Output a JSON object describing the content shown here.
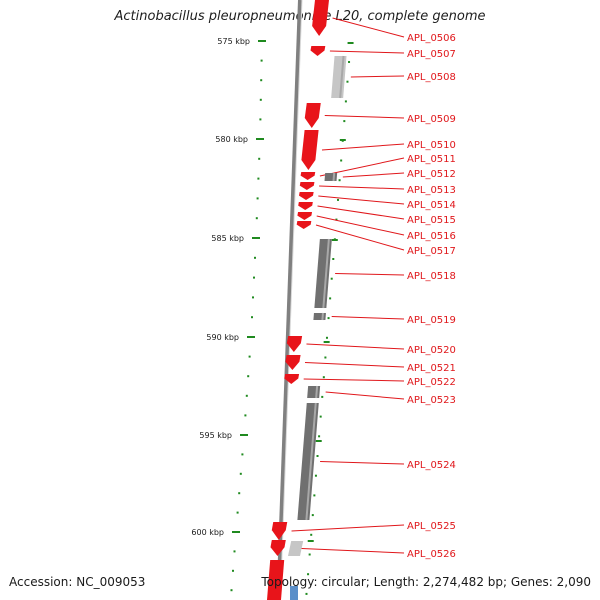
{
  "title": "Actinobacillus pleuropneumoniae L20, complete genome",
  "accession": "Accession: NC_009053",
  "summary": "Topology: circular; Length: 2,274,482 bp; Genes: 2,090",
  "colors": {
    "forward": "#e8141a",
    "reverse": "#707070",
    "reverse_light": "#c6c6c6",
    "tick": "#1f8a1f",
    "label": "#e0171b",
    "backbone": "#808080",
    "rna": "#5b8fc9"
  },
  "ruler": {
    "unit": "kbp",
    "ticks": [
      {
        "value": 575,
        "label": "575 kbp"
      },
      {
        "value": 580,
        "label": "580 kbp"
      },
      {
        "value": 585,
        "label": "585 kbp"
      },
      {
        "value": 590,
        "label": "590 kbp"
      },
      {
        "value": 595,
        "label": "595 kbp"
      },
      {
        "value": 600,
        "label": "600 kbp"
      }
    ]
  },
  "genes": [
    {
      "name": "APL_0506",
      "strand": "+"
    },
    {
      "name": "APL_0507",
      "strand": "+"
    },
    {
      "name": "APL_0508",
      "strand": "-"
    },
    {
      "name": "APL_0509",
      "strand": "+"
    },
    {
      "name": "APL_0510",
      "strand": "+"
    },
    {
      "name": "APL_0511",
      "strand": "+"
    },
    {
      "name": "APL_0512",
      "strand": "-"
    },
    {
      "name": "APL_0513",
      "strand": "+"
    },
    {
      "name": "APL_0514",
      "strand": "+"
    },
    {
      "name": "APL_0515",
      "strand": "+"
    },
    {
      "name": "APL_0516",
      "strand": "+"
    },
    {
      "name": "APL_0517",
      "strand": "+"
    },
    {
      "name": "APL_0518",
      "strand": "-"
    },
    {
      "name": "APL_0519",
      "strand": "-"
    },
    {
      "name": "APL_0520",
      "strand": "+"
    },
    {
      "name": "APL_0521",
      "strand": "+"
    },
    {
      "name": "APL_0522",
      "strand": "+"
    },
    {
      "name": "APL_0523",
      "strand": "-"
    },
    {
      "name": "APL_0524",
      "strand": "-"
    },
    {
      "name": "APL_0525",
      "strand": "+"
    },
    {
      "name": "APL_0526",
      "strand": "+"
    }
  ]
}
